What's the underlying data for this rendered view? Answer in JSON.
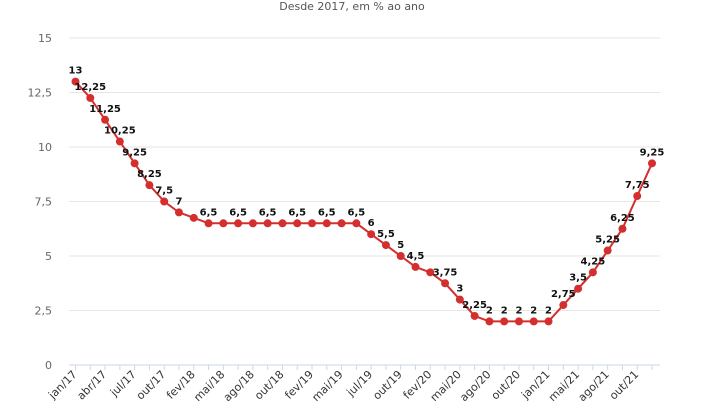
{
  "chart_data": {
    "type": "line",
    "subtitle": "Desde 2017, em % ao ano",
    "title": "",
    "xlabel": "",
    "ylabel": "",
    "ylim": [
      0,
      15
    ],
    "yticks": [
      "0",
      "2,5",
      "5",
      "7,5",
      "10",
      "12,5",
      "15"
    ],
    "ytick_values": [
      0,
      2.5,
      5,
      7.5,
      10,
      12.5,
      15
    ],
    "grid": true,
    "legend": "none",
    "color": "#d32f2f",
    "xtick_labels": [
      {
        "i": 0,
        "label": "jan/17"
      },
      {
        "i": 2,
        "label": "abr/17"
      },
      {
        "i": 4,
        "label": "jul/17"
      },
      {
        "i": 6,
        "label": "out/17"
      },
      {
        "i": 8,
        "label": "fev/18"
      },
      {
        "i": 10,
        "label": "mai/18"
      },
      {
        "i": 12,
        "label": "ago/18"
      },
      {
        "i": 14,
        "label": "out/18"
      },
      {
        "i": 16,
        "label": "fev/19"
      },
      {
        "i": 18,
        "label": "mai/19"
      },
      {
        "i": 20,
        "label": "jul/19"
      },
      {
        "i": 22,
        "label": "out/19"
      },
      {
        "i": 24,
        "label": "fev/20"
      },
      {
        "i": 26,
        "label": "mai/20"
      },
      {
        "i": 28,
        "label": "ago/20"
      },
      {
        "i": 30,
        "label": "out/20"
      },
      {
        "i": 32,
        "label": "jan/21"
      },
      {
        "i": 34,
        "label": "mai/21"
      },
      {
        "i": 36,
        "label": "ago/21"
      },
      {
        "i": 38,
        "label": "out/21"
      }
    ],
    "values": [
      13,
      12.25,
      11.25,
      10.25,
      9.25,
      8.25,
      7.5,
      7,
      6.75,
      6.5,
      6.5,
      6.5,
      6.5,
      6.5,
      6.5,
      6.5,
      6.5,
      6.5,
      6.5,
      6.5,
      6,
      5.5,
      5,
      4.5,
      4.25,
      3.75,
      3,
      2.25,
      2,
      2,
      2,
      2,
      2,
      2.75,
      3.5,
      4.25,
      5.25,
      6.25,
      7.75,
      9.25
    ],
    "labels": [
      "13",
      "12,25",
      "11,25",
      "10,25",
      "9,25",
      "8,25",
      "7,5",
      "7",
      "",
      "6,5",
      "",
      "6,5",
      "",
      "6,5",
      "",
      "6,5",
      "",
      "6,5",
      "",
      "6,5",
      "6",
      "5,5",
      "5",
      "4,5",
      "",
      "3,75",
      "3",
      "2,25",
      "2",
      "2",
      "2",
      "2",
      "2",
      "2,75",
      "3,5",
      "4,25",
      "5,25",
      "6,25",
      "7,75",
      "9,25"
    ]
  }
}
